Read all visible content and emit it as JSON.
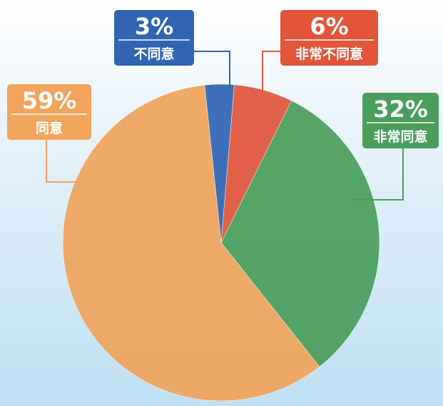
{
  "chart_data": {
    "type": "pie",
    "categories": [
      "不同意",
      "非常不同意",
      "非常同意",
      "同意"
    ],
    "values": [
      3,
      6,
      32,
      59
    ],
    "value_labels": [
      "3%",
      "6%",
      "32%",
      "59%"
    ],
    "colors": [
      "#2f65b3",
      "#e2553a",
      "#4a9e5c",
      "#f0a45c"
    ]
  }
}
